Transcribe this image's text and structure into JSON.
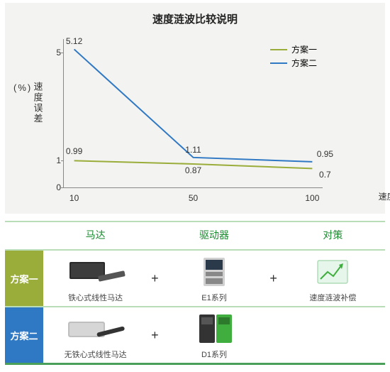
{
  "chart": {
    "type": "line",
    "title": "速度涟波比较说明",
    "y_axis_label": "速度误差",
    "y_axis_unit": "(%)",
    "x_axis_label": "速度(mm/s)",
    "background_color": "#f3f3f1",
    "axis_color": "#888888",
    "text_color": "#333333",
    "title_fontsize": 15,
    "label_fontsize": 13,
    "tick_fontsize": 12,
    "ylim": [
      0,
      5.5
    ],
    "y_ticks": [
      0,
      1,
      5
    ],
    "x_categories": [
      10,
      50,
      100
    ],
    "series": [
      {
        "name": "方案一",
        "color": "#9aad3a",
        "line_width": 2,
        "values": [
          0.99,
          0.87,
          0.7
        ],
        "label_offsets": [
          [
            0,
            -6
          ],
          [
            0,
            16
          ],
          [
            18,
            16
          ]
        ]
      },
      {
        "name": "方案二",
        "color": "#2f78c4",
        "line_width": 2,
        "values": [
          5.12,
          1.11,
          0.95
        ],
        "label_offsets": [
          [
            0,
            -4
          ],
          [
            0,
            -4
          ],
          [
            18,
            -4
          ]
        ]
      }
    ],
    "legend_position": "top-right"
  },
  "table": {
    "border_color": "#b8ddb8",
    "header_text_color": "#1a8a2f",
    "bottom_border_color": "#4aa05a",
    "columns": [
      "马达",
      "驱动器",
      "对策"
    ],
    "plus_symbol": "+",
    "rows": [
      {
        "label": "方案一",
        "label_bg": "#9aad3a",
        "cells": [
          {
            "caption": "铁心式线性马达",
            "icon": "motor-iron"
          },
          {
            "caption": "E1系列",
            "icon": "drive-e1"
          },
          {
            "caption": "速度涟波补偿",
            "icon": "compensation"
          }
        ],
        "show_second_plus": true
      },
      {
        "label": "方案二",
        "label_bg": "#2f78c4",
        "cells": [
          {
            "caption": "无铁心式线性马达",
            "icon": "motor-ironless"
          },
          {
            "caption": "D1系列",
            "icon": "drive-d1"
          },
          {
            "caption": "",
            "icon": ""
          }
        ],
        "show_second_plus": false
      }
    ]
  }
}
